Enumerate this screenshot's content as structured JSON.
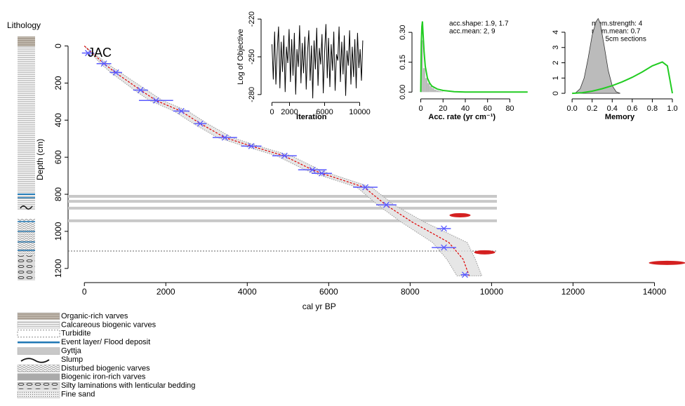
{
  "lithology": {
    "title": "Lithology",
    "legend": [
      "Organic-rich varves",
      "Calcareous biogenic varves",
      "Turbidite",
      "Event layer/ Flood deposit",
      "Gyttja",
      "Slump",
      "Disturbed biogenic varves",
      "Biogenic iron-rich varves",
      "Silty laminations with lenticular bedding",
      "Fine sand"
    ]
  },
  "chart_data": [
    {
      "type": "line",
      "x_label": "cal yr BP",
      "y_label": "Depth (cm)",
      "label": "JAC",
      "xlim": [
        -400,
        14750
      ],
      "ylim": [
        1265,
        -40
      ],
      "xticks": [
        0,
        2000,
        4000,
        6000,
        8000,
        10000,
        12000,
        14000
      ],
      "yticks": [
        0,
        200,
        400,
        600,
        800,
        1000,
        1200
      ],
      "depth": [
        0,
        95,
        143,
        238,
        294,
        351,
        419,
        494,
        540,
        592,
        668,
        687,
        762,
        857,
        950,
        1060,
        1150,
        1240
      ],
      "mean_age": [
        0,
        480,
        760,
        1380,
        1760,
        2370,
        2850,
        3450,
        4100,
        4900,
        5600,
        5830,
        6870,
        7400,
        8050,
        8950,
        9300,
        9450
      ],
      "min_age": [
        0,
        400,
        650,
        1230,
        1600,
        2200,
        2680,
        3270,
        3930,
        4720,
        5420,
        5650,
        6690,
        7200,
        7780,
        8550,
        8900,
        9150
      ],
      "max_age": [
        0,
        560,
        880,
        1530,
        1920,
        2540,
        3020,
        3630,
        4270,
        5080,
        5780,
        6010,
        7050,
        7600,
        8350,
        9400,
        9600,
        9760
      ],
      "line_color": "#e00000",
      "range_color": "#999999",
      "dates": {
        "depths": [
          38,
          95,
          143,
          238,
          294,
          351,
          419,
          494,
          540,
          592,
          668,
          687,
          762,
          857,
          985,
          1087,
          1234
        ],
        "ages": [
          90,
          480,
          775,
          1380,
          1760,
          2380,
          2845,
          3450,
          4100,
          4915,
          5600,
          5830,
          6900,
          7415,
          8830,
          8830,
          9345
        ],
        "errors": [
          150,
          180,
          150,
          180,
          420,
          200,
          150,
          300,
          250,
          300,
          350,
          250,
          300,
          250,
          170,
          300,
          100
        ],
        "color": "#5a5aff"
      },
      "outliers": {
        "ages": [
          9225,
          9830,
          14310
        ],
        "depths": [
          913,
          1113,
          1170
        ],
        "color": "#d42020"
      },
      "layer_depths": [
        811,
        838,
        875,
        943
      ],
      "hiatus_depth": 1106
    },
    {
      "type": "line",
      "x_label": "Iteration",
      "y_label": "Log of Objective",
      "xlim": [
        -1000,
        11800
      ],
      "ylim": [
        -284,
        -216
      ],
      "xticks": [
        0,
        2000,
        6000,
        10000
      ],
      "yticks": [
        -220,
        -250,
        -280
      ],
      "color": "#000000",
      "x": [
        0,
        150,
        300,
        450,
        600,
        750,
        900,
        1050,
        1200,
        1350,
        1500,
        1650,
        1800,
        1950,
        2100,
        2250,
        2400,
        2550,
        2700,
        2850,
        3000,
        3150,
        3300,
        3450,
        3600,
        3750,
        3900,
        4050,
        4200,
        4350,
        4500,
        4650,
        4800,
        4950,
        5100,
        5250,
        5400,
        5550,
        5700,
        5850,
        6000,
        6150,
        6300,
        6450,
        6600,
        6750,
        6900,
        7050,
        7200,
        7350,
        7500,
        7650,
        7800,
        7950,
        8100,
        8250,
        8400,
        8550,
        8700,
        8850,
        9000,
        9150,
        9300,
        9450,
        9600,
        9750,
        9900,
        10050,
        10200,
        10350
      ],
      "values": [
        -240,
        -268,
        -230,
        -272,
        -245,
        -226,
        -275,
        -238,
        -262,
        -233,
        -278,
        -242,
        -255,
        -228,
        -270,
        -236,
        -265,
        -231,
        -280,
        -244,
        -258,
        -225,
        -271,
        -239,
        -263,
        -234,
        -276,
        -247,
        -229,
        -269,
        -241,
        -283,
        -237,
        -260,
        -227,
        -273,
        -243,
        -256,
        -232,
        -279,
        -246,
        -224,
        -267,
        -235,
        -274,
        -240,
        -261,
        -230,
        -277,
        -248,
        -253,
        -226,
        -270,
        -238,
        -264,
        -233,
        -281,
        -245,
        -257,
        -229,
        -272,
        -242,
        -266,
        -236,
        -275,
        -231,
        -259,
        -244,
        -269,
        -237
      ]
    },
    {
      "type": "histogram",
      "x_label": "Acc. rate (yr cm⁻¹)",
      "xlim": [
        -6,
        98
      ],
      "ylim": [
        -0.02,
        0.385
      ],
      "xticks": [
        0,
        20,
        40,
        60,
        80
      ],
      "yticks": [
        {
          "value": 0,
          "label": "0.00"
        },
        0.15,
        {
          "value": 0.3,
          "label": "0.30"
        }
      ],
      "bins": [
        0,
        2,
        4,
        6,
        8,
        10,
        12,
        14,
        16,
        18,
        20
      ],
      "counts": [
        0.26,
        0.12,
        0.07,
        0.045,
        0.03,
        0.02,
        0.012,
        0.008,
        0.005,
        0.003
      ],
      "color": "#bbbbbb",
      "prior": {
        "x": [
          0,
          0.5,
          1,
          1.5,
          2,
          3,
          4,
          6,
          8,
          10,
          15,
          20,
          30,
          40,
          60,
          96
        ],
        "values": [
          0,
          0.25,
          0.33,
          0.355,
          0.3,
          0.2,
          0.13,
          0.07,
          0.045,
          0.03,
          0.015,
          0.008,
          0.002,
          0.0005,
          0,
          0
        ],
        "color": "#22cc22"
      },
      "annotations": [
        "acc.shape: 1.9, 1.7",
        "acc.mean: 2, 9"
      ],
      "annotation_color": "#e03030"
    },
    {
      "type": "density",
      "x_label": "Memory",
      "xlim": [
        -0.05,
        1.07
      ],
      "ylim": [
        -0.18,
        5.1
      ],
      "xticks": [
        {
          "value": 0,
          "label": "0.0"
        },
        0.2,
        0.4,
        0.6,
        0.8,
        {
          "value": 1,
          "label": "1.0"
        }
      ],
      "yticks": [
        0,
        1,
        2,
        3,
        4
      ],
      "posterior": {
        "x": [
          0.03,
          0.08,
          0.12,
          0.16,
          0.2,
          0.24,
          0.26,
          0.28,
          0.32,
          0.36,
          0.4,
          0.44,
          0.48
        ],
        "values": [
          0,
          0.3,
          1.0,
          2.3,
          3.8,
          4.7,
          4.9,
          4.6,
          3.1,
          1.5,
          0.5,
          0.1,
          0
        ],
        "color": "#bbbbbb"
      },
      "prior": {
        "x": [
          0,
          0.1,
          0.2,
          0.3,
          0.4,
          0.5,
          0.6,
          0.7,
          0.8,
          0.9,
          0.95,
          1.0
        ],
        "values": [
          0,
          0.04,
          0.14,
          0.3,
          0.5,
          0.75,
          1.05,
          1.4,
          1.8,
          2.05,
          1.8,
          0
        ],
        "color": "#22cc22"
      },
      "annotations": [
        "mem.strength: 4",
        "mem.mean: 0.7",
        "252 5cm sections"
      ],
      "annotation_color": "#e03030"
    }
  ]
}
